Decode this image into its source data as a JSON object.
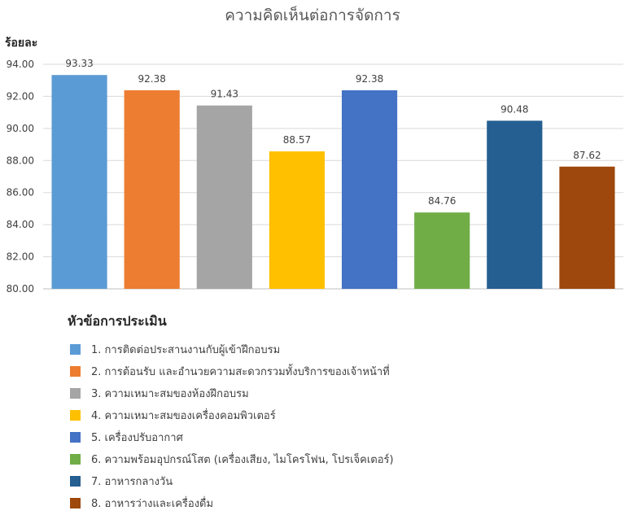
{
  "chart_data": {
    "type": "bar",
    "title": "ความคิดเห็นต่อการจัดการ",
    "ylabel": "ร้อยละ",
    "ylim": [
      80,
      94
    ],
    "yticks": [
      "80.00",
      "82.00",
      "84.00",
      "86.00",
      "88.00",
      "90.00",
      "92.00",
      "94.00"
    ],
    "grid": true,
    "legend_title": "หัวข้อการประเมิน",
    "legend_position": "bottom-left",
    "categories": [
      "1.  การติดต่อประสานงานกับผู้เข้าฝึกอบรม",
      "2.  การต้อนรับ และอำนวยความสะดวกรวมทั้งบริการของเจ้าหน้าที่",
      "3.  ความเหมาะสมของห้องฝึกอบรม",
      "4.  ความเหมาะสมของเครื่องคอมพิวเตอร์",
      "5.  เครื่องปรับอากาศ",
      "6.  ความพร้อมอุปกรณ์โสต (เครื่องเสียง, ไมโครโฟน, โปรเจ็คเตอร์)",
      "7.  อาหารกลางวัน",
      "8.  อาหารว่างและเครื่องดื่ม"
    ],
    "values": [
      93.33,
      92.38,
      91.43,
      88.57,
      92.38,
      84.76,
      90.48,
      87.62
    ],
    "value_labels": [
      "93.33",
      "92.38",
      "91.43",
      "88.57",
      "92.38",
      "84.76",
      "90.48",
      "87.62"
    ],
    "colors": [
      "#5B9BD5",
      "#ED7D31",
      "#A5A5A5",
      "#FFC000",
      "#4472C4",
      "#70AD47",
      "#255E91",
      "#9E480E"
    ]
  }
}
